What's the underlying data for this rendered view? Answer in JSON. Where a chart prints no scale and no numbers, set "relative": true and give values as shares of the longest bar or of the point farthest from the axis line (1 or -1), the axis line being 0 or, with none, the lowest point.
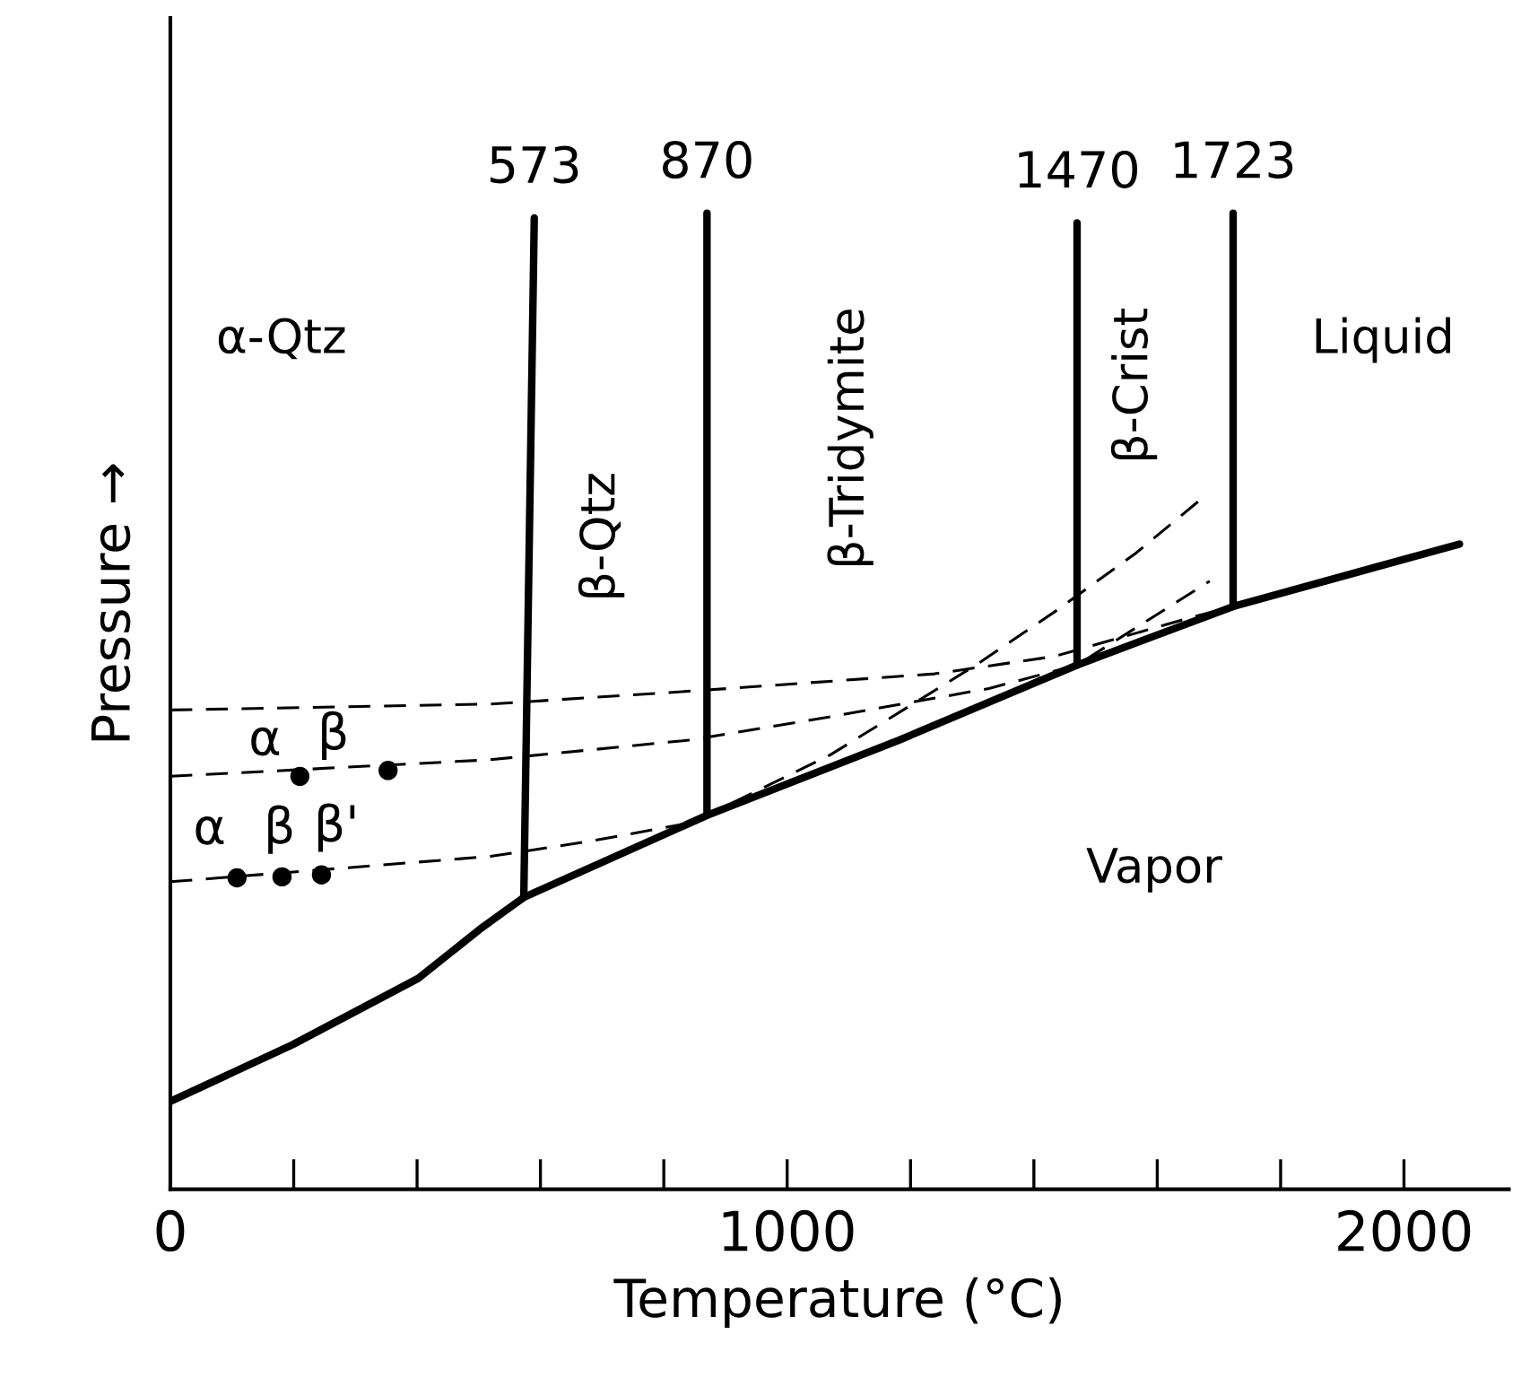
{
  "chart_data": {
    "type": "line",
    "relative": true,
    "xlabel": "Temperature (°C)",
    "ylabel": "Pressure →",
    "xlim": [
      0,
      2170
    ],
    "xticks": [
      0,
      1000,
      2000
    ],
    "tick_labels": "x",
    "grid": false,
    "legend": false,
    "series": [
      {
        "color": "#000000",
        "line_style": "solid",
        "marker": "none",
        "x": [
          0,
          198,
          402,
          501,
          573,
          870,
          1181,
          1470,
          1723,
          2090
        ],
        "values": [
          0.09,
          0.148,
          0.216,
          0.266,
          0.299,
          0.383,
          0.46,
          0.537,
          0.597,
          0.661
        ]
      },
      {
        "name": "573",
        "color": "#000000",
        "line_style": "solid",
        "marker": "none",
        "x": [
          573,
          590
        ],
        "values": [
          0.299,
          0.995
        ]
      },
      {
        "name": "870",
        "color": "#000000",
        "line_style": "solid",
        "marker": "none",
        "x": [
          870,
          870
        ],
        "values": [
          0.383,
          1.0
        ]
      },
      {
        "name": "1470",
        "color": "#000000",
        "line_style": "solid",
        "marker": "none",
        "x": [
          1470,
          1470
        ],
        "values": [
          0.537,
          0.99
        ]
      },
      {
        "name": "1723",
        "color": "#000000",
        "line_style": "solid",
        "marker": "none",
        "x": [
          1723,
          1723
        ],
        "values": [
          0.597,
          1.0
        ]
      },
      {
        "color": "#000000",
        "line_style": "dashed",
        "marker": "none",
        "x": [
          0,
          518,
          860,
          1239,
          1434,
          1656,
          1723
        ],
        "values": [
          0.491,
          0.497,
          0.511,
          0.528,
          0.546,
          0.586,
          0.597
        ]
      },
      {
        "color": "#000000",
        "line_style": "dashed",
        "marker": "none",
        "x": [
          0,
          518,
          840,
          1079,
          1327,
          1470,
          1685
        ],
        "values": [
          0.423,
          0.44,
          0.46,
          0.485,
          0.513,
          0.537,
          0.623
        ]
      },
      {
        "color": "#000000",
        "line_style": "dashed",
        "marker": "none",
        "x": [
          0,
          519,
          685,
          840,
          870,
          1070,
          1201,
          1306,
          1437,
          1566,
          1671
        ],
        "values": [
          0.315,
          0.341,
          0.357,
          0.375,
          0.383,
          0.445,
          0.496,
          0.537,
          0.593,
          0.652,
          0.707
        ]
      },
      {
        "type": "scatter",
        "color": "#000000",
        "marker": "circle",
        "x": [
          210,
          353,
          108,
          181,
          245
        ],
        "values": [
          0.423,
          0.429,
          0.319,
          0.32,
          0.322
        ]
      }
    ],
    "annotations": [
      "α-Qtz",
      "β-Qtz",
      "β-Tridymite",
      "β-Crist",
      "Liquid",
      "Vapor",
      {
        "text": "α",
        "x": 210,
        "y": 0.423
      },
      {
        "text": "β",
        "x": 353,
        "y": 0.429
      },
      {
        "text": "α",
        "x": 108,
        "y": 0.319
      },
      {
        "text": "β",
        "x": 181,
        "y": 0.32
      },
      {
        "text": "β'",
        "x": 245,
        "y": 0.322
      }
    ]
  }
}
